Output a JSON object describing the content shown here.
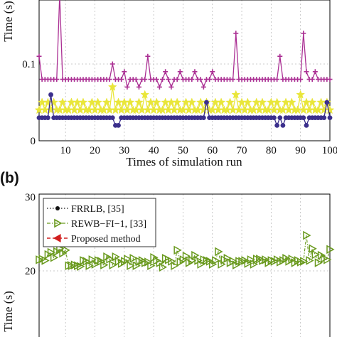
{
  "chart_data": [
    {
      "type": "line",
      "panel_label": "",
      "xlabel": "Times of simulation run",
      "ylabel": "Time (s)",
      "xlim": [
        1,
        100
      ],
      "ylim": [
        0,
        0.2
      ],
      "grid": true,
      "x_ticks": [
        "10",
        "20",
        "30",
        "40",
        "50",
        "60",
        "70",
        "80",
        "90",
        "100"
      ],
      "y_ticks": [
        "0",
        "0.1"
      ],
      "series": [
        {
          "color": "#ab3094",
          "marker": "plus",
          "values": [
            0.11,
            0.08,
            0.08,
            0.08,
            0.08,
            0.08,
            0.08,
            0.19,
            0.08,
            0.08,
            0.08,
            0.08,
            0.08,
            0.08,
            0.08,
            0.08,
            0.08,
            0.08,
            0.08,
            0.08,
            0.08,
            0.08,
            0.08,
            0.08,
            0.08,
            0.1,
            0.08,
            0.08,
            0.08,
            0.09,
            0.07,
            0.08,
            0.08,
            0.08,
            0.07,
            0.08,
            0.08,
            0.11,
            0.08,
            0.08,
            0.08,
            0.07,
            0.08,
            0.09,
            0.08,
            0.07,
            0.08,
            0.08,
            0.09,
            0.08,
            0.08,
            0.08,
            0.08,
            0.09,
            0.08,
            0.08,
            0.07,
            0.08,
            0.08,
            0.09,
            0.08,
            0.08,
            0.08,
            0.08,
            0.08,
            0.08,
            0.08,
            0.14,
            0.08,
            0.08,
            0.08,
            0.08,
            0.08,
            0.08,
            0.08,
            0.08,
            0.08,
            0.08,
            0.08,
            0.08,
            0.08,
            0.08,
            0.11,
            0.08,
            0.08,
            0.08,
            0.08,
            0.08,
            0.08,
            0.08,
            0.14,
            0.09,
            0.08,
            0.08,
            0.09,
            0.08,
            0.08,
            0.08,
            0.08,
            0.08
          ]
        },
        {
          "color": "#e9e63a",
          "marker": "star",
          "values": [
            0.04,
            0.05,
            0.04,
            0.05,
            0.04,
            0.05,
            0.04,
            0.04,
            0.05,
            0.04,
            0.04,
            0.05,
            0.04,
            0.05,
            0.04,
            0.05,
            0.04,
            0.04,
            0.05,
            0.04,
            0.05,
            0.04,
            0.04,
            0.05,
            0.04,
            0.07,
            0.04,
            0.05,
            0.04,
            0.05,
            0.04,
            0.05,
            0.04,
            0.04,
            0.05,
            0.04,
            0.06,
            0.04,
            0.05,
            0.04,
            0.05,
            0.04,
            0.04,
            0.05,
            0.04,
            0.05,
            0.04,
            0.05,
            0.04,
            0.04,
            0.05,
            0.04,
            0.05,
            0.04,
            0.04,
            0.05,
            0.04,
            0.05,
            0.04,
            0.04,
            0.05,
            0.04,
            0.05,
            0.04,
            0.04,
            0.05,
            0.04,
            0.06,
            0.04,
            0.05,
            0.04,
            0.05,
            0.04,
            0.04,
            0.05,
            0.04,
            0.05,
            0.04,
            0.04,
            0.05,
            0.04,
            0.05,
            0.04,
            0.04,
            0.05,
            0.04,
            0.05,
            0.04,
            0.04,
            0.06,
            0.04,
            0.05,
            0.04,
            0.05,
            0.04,
            0.04,
            0.05,
            0.04,
            0.05,
            0.04
          ]
        },
        {
          "color": "#3b2f8c",
          "marker": "dot",
          "values": [
            0.03,
            0.03,
            0.03,
            0.03,
            0.06,
            0.03,
            0.03,
            0.03,
            0.03,
            0.03,
            0.03,
            0.03,
            0.03,
            0.03,
            0.03,
            0.03,
            0.03,
            0.03,
            0.03,
            0.03,
            0.03,
            0.03,
            0.03,
            0.03,
            0.03,
            0.03,
            0.02,
            0.02,
            0.03,
            0.03,
            0.03,
            0.03,
            0.03,
            0.03,
            0.03,
            0.03,
            0.03,
            0.03,
            0.03,
            0.03,
            0.03,
            0.03,
            0.03,
            0.03,
            0.03,
            0.03,
            0.03,
            0.03,
            0.03,
            0.03,
            0.03,
            0.03,
            0.03,
            0.03,
            0.03,
            0.03,
            0.03,
            0.05,
            0.03,
            0.03,
            0.03,
            0.03,
            0.03,
            0.03,
            0.03,
            0.03,
            0.03,
            0.03,
            0.03,
            0.03,
            0.03,
            0.03,
            0.03,
            0.03,
            0.03,
            0.03,
            0.03,
            0.03,
            0.03,
            0.03,
            0.03,
            0.02,
            0.03,
            0.02,
            0.03,
            0.03,
            0.03,
            0.03,
            0.03,
            0.03,
            0.03,
            0.02,
            0.03,
            0.03,
            0.03,
            0.03,
            0.03,
            0.03,
            0.05,
            0.03
          ]
        }
      ]
    },
    {
      "type": "line",
      "panel_label": "(b)",
      "xlabel": "",
      "ylabel": "Time (s)",
      "xlim": [
        1,
        100
      ],
      "ylim": [
        0,
        30
      ],
      "grid": true,
      "y_ticks": [
        "20",
        "30"
      ],
      "legend_position": "top-left",
      "series": [
        {
          "name": "FRRLB, [35]",
          "color": "#111111",
          "marker": "dot",
          "values": []
        },
        {
          "name": "REWB−FI−1, [33]",
          "color": "#6a9a1f",
          "marker": "triangle-right",
          "values": [
            21.5,
            21.6,
            21.4,
            22.2,
            22.5,
            21.8,
            22.6,
            23.0,
            22.4,
            22.8,
            20.7,
            20.7,
            20.8,
            20.7,
            20.6,
            21.4,
            21.3,
            20.7,
            21.5,
            20.9,
            21.4,
            21.3,
            20.8,
            21.9,
            21.6,
            20.8,
            21.9,
            21.3,
            21.0,
            21.3,
            21.6,
            20.7,
            21.7,
            20.7,
            21.3,
            21.4,
            21.1,
            21.2,
            20.7,
            21.8,
            21.4,
            21.1,
            20.5,
            21.7,
            21.5,
            21.3,
            20.7,
            22.8,
            21.2,
            21.5,
            22.0,
            21.1,
            21.4,
            22.1,
            21.4,
            20.9,
            21.5,
            21.4,
            21.3,
            20.9,
            21.4,
            22.6,
            20.9,
            21.5,
            21.7,
            21.1,
            21.3,
            20.8,
            21.3,
            21.3,
            21.4,
            21.0,
            21.5,
            20.9,
            21.6,
            21.6,
            21.4,
            21.5,
            21.1,
            21.4,
            21.3,
            21.5,
            21.2,
            21.4,
            21.7,
            21.3,
            21.6,
            21.1,
            21.4,
            21.2,
            21.3,
            24.8,
            21.4,
            23.0,
            22.2,
            21.1,
            22.1,
            21.7,
            21.5,
            22.9
          ]
        },
        {
          "name": "Proposed method",
          "color": "#d11f1f",
          "marker": "triangle-left",
          "values": []
        }
      ]
    }
  ]
}
